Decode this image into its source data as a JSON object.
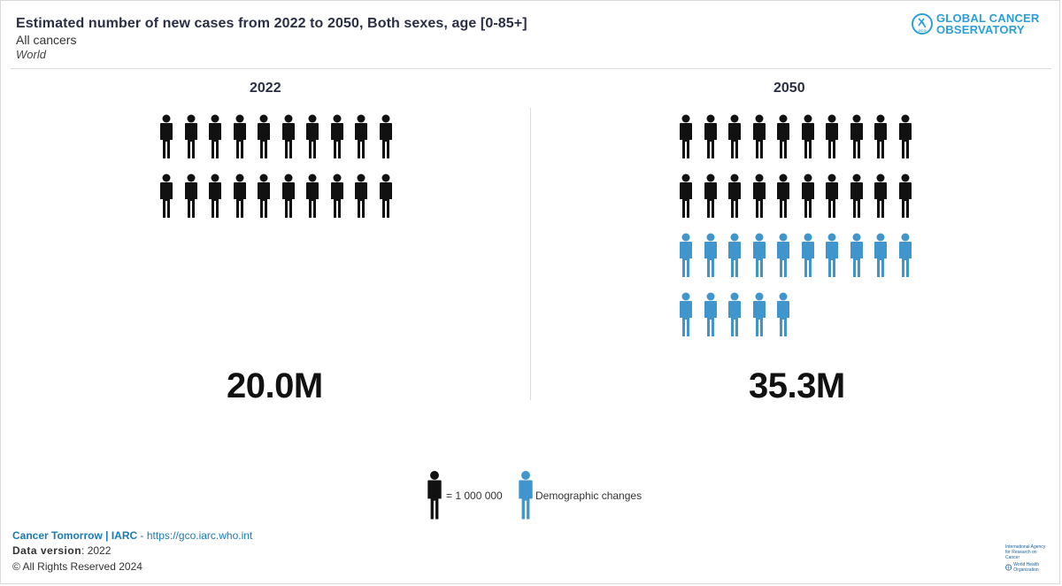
{
  "header": {
    "title": "Estimated number of new cases from 2022 to 2050, Both sexes, age [0-85+]",
    "subtitle": "All cancers",
    "region": "World"
  },
  "logo": {
    "line1": "GLOBAL CANCER",
    "line2": "OBSERVATORY",
    "badge": "GCO"
  },
  "colors": {
    "base": "#111111",
    "demographic": "#3f95cc",
    "accent": "#2b9fd6"
  },
  "chart_data": {
    "type": "pictogram",
    "unit_label": "= 1 000 000",
    "unit_value": 1000000,
    "panels": [
      {
        "year": "2022",
        "value_label": "20.0M",
        "base_icons": 20,
        "demographic_icons": 0
      },
      {
        "year": "2050",
        "value_label": "35.3M",
        "base_icons": 20,
        "demographic_icons": 15
      }
    ],
    "legend": [
      {
        "name": "= 1 000 000",
        "color": "#111111"
      },
      {
        "name": "Demographic changes",
        "color": "#3f95cc"
      }
    ]
  },
  "footer": {
    "brand": "Cancer Tomorrow",
    "sep": "|",
    "org": "IARC",
    "dash": "-",
    "url": "https://gco.iarc.who.int",
    "data_version_label": "Data version",
    "data_version_value": "2022",
    "rights": "© All Rights Reserved 2024",
    "iarc_text": "International Agency for Research on Cancer",
    "who_text": "World Health Organization"
  }
}
